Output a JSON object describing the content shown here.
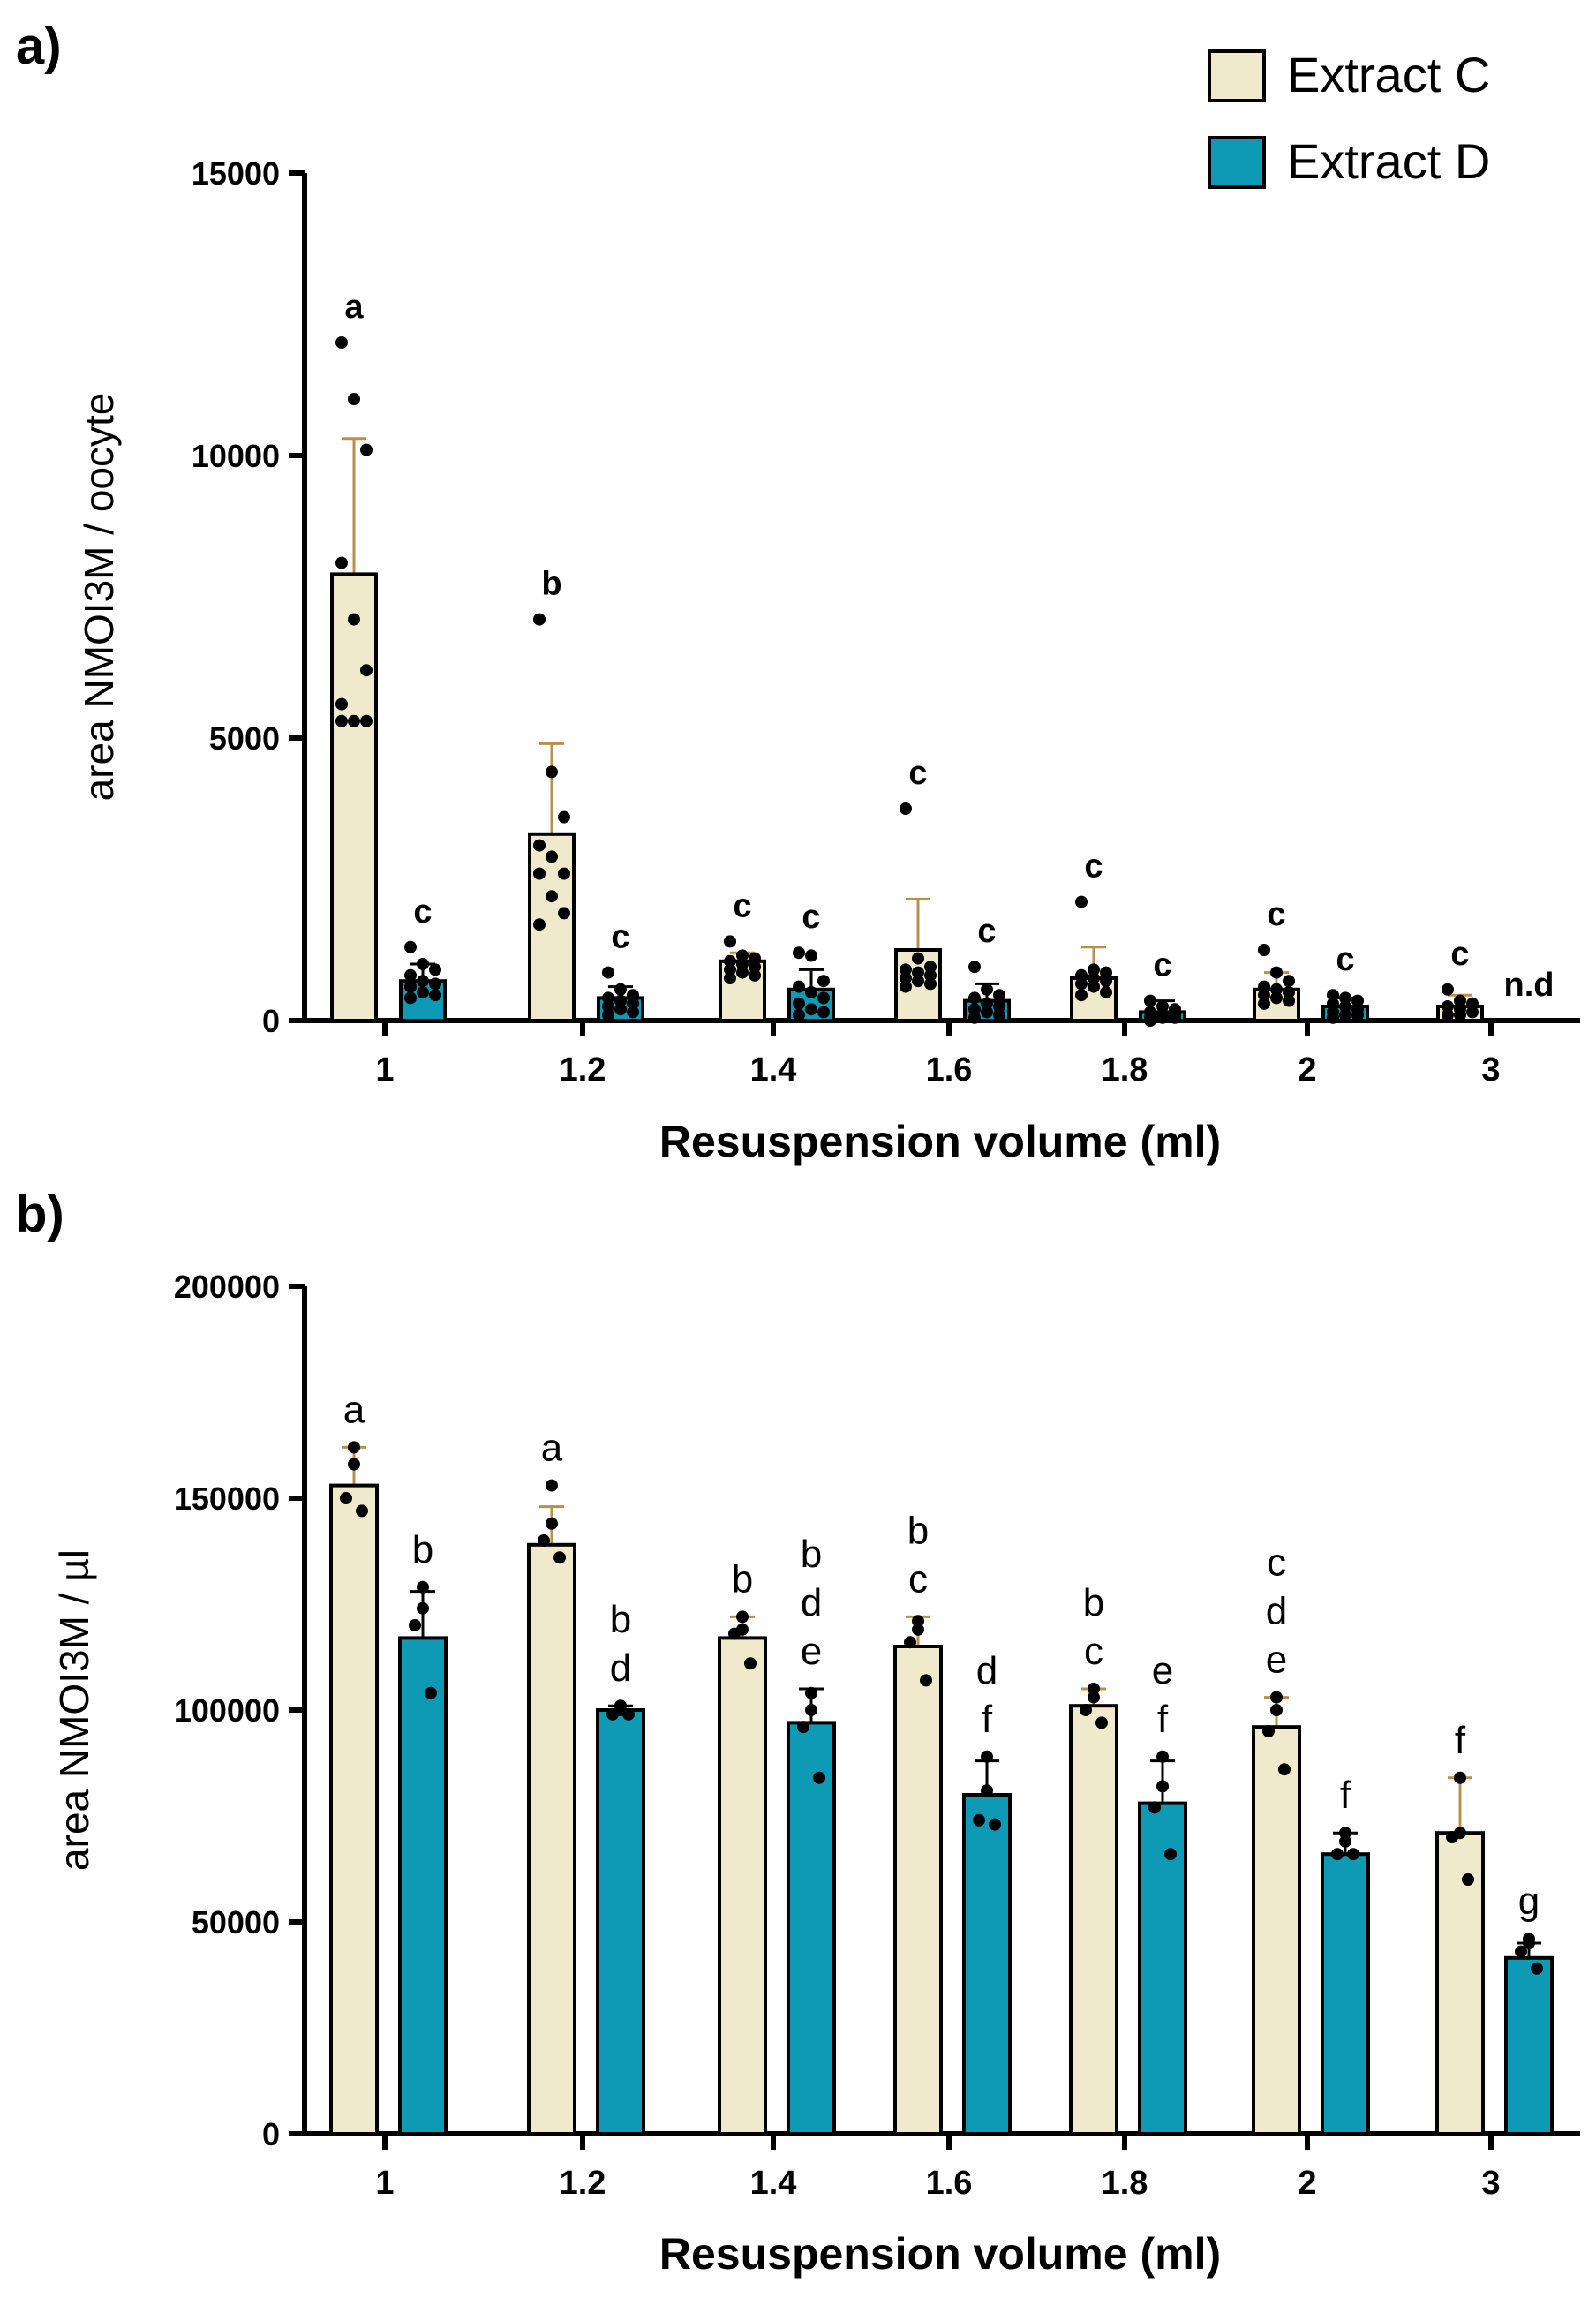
{
  "colors": {
    "extract_c": "#F0EACD",
    "extract_d": "#0E9AB5",
    "error_c": "#B8904A",
    "error_d": "#000000",
    "axis": "#000000"
  },
  "legend": {
    "placement": "top-right",
    "items": [
      "Extract C",
      "Extract D"
    ]
  },
  "chart_data": [
    {
      "type": "bar",
      "panel_label": "a)",
      "title": "",
      "xlabel": "Resuspension volume (ml)",
      "ylabel": "area NMOI3M / oocyte",
      "ylim": [
        0,
        15000
      ],
      "yticks": [
        "0",
        "5000",
        "10000",
        "15000"
      ],
      "yticks_values": [
        0,
        5000,
        10000,
        15000
      ],
      "categories": [
        "1",
        "1.2",
        "1.4",
        "1.6",
        "1.8",
        "2",
        "3"
      ],
      "series": [
        {
          "name": "Extract C",
          "values": [
            7900,
            3300,
            1050,
            1250,
            750,
            550,
            250
          ],
          "error_upper": [
            10300,
            4900,
            1200,
            2150,
            1300,
            850,
            450
          ],
          "letters": [
            "a",
            "b",
            "c",
            "c",
            "c",
            "c",
            "c"
          ],
          "points": [
            [
              12000,
              11000,
              10100,
              8100,
              7100,
              6200,
              5600,
              5300,
              5300,
              5300
            ],
            [
              7100,
              4400,
              3600,
              3100,
              2900,
              2600,
              2600,
              2200,
              1900,
              1700
            ],
            [
              1400,
              1150,
              1100,
              1050,
              1000,
              950,
              900,
              850,
              800,
              750
            ],
            [
              3750,
              1100,
              950,
              900,
              850,
              800,
              750,
              700,
              650,
              600
            ],
            [
              2100,
              900,
              850,
              800,
              750,
              700,
              650,
              600,
              500,
              450
            ],
            [
              1250,
              850,
              700,
              600,
              550,
              500,
              450,
              400,
              350,
              300
            ],
            [
              550,
              350,
              300,
              250,
              200,
              150,
              100,
              100
            ]
          ]
        },
        {
          "name": "Extract D",
          "values": [
            700,
            400,
            550,
            350,
            150,
            250,
            null
          ],
          "error_upper": [
            1000,
            600,
            900,
            650,
            350,
            400,
            null
          ],
          "letters": [
            "c",
            "c",
            "c",
            "c",
            "c",
            "c",
            "n.d"
          ],
          "points": [
            [
              1300,
              1000,
              900,
              800,
              700,
              650,
              600,
              500,
              450,
              400
            ],
            [
              850,
              550,
              450,
              400,
              350,
              300,
              250,
              200,
              150,
              100
            ],
            [
              1200,
              1150,
              700,
              600,
              500,
              400,
              300,
              200,
              150,
              100
            ],
            [
              950,
              550,
              450,
              400,
              300,
              250,
              200,
              150,
              100,
              50
            ],
            [
              350,
              250,
              200,
              150,
              100,
              100,
              50,
              50,
              50,
              0
            ],
            [
              450,
              400,
              350,
              300,
              250,
              200,
              150,
              100,
              100,
              50
            ],
            []
          ]
        }
      ]
    },
    {
      "type": "bar",
      "panel_label": "b)",
      "title": "",
      "xlabel": "Resuspension volume (ml)",
      "ylabel": "area NMOI3M / µl",
      "ylim": [
        0,
        200000
      ],
      "yticks": [
        "0",
        "50000",
        "100000",
        "150000",
        "200000"
      ],
      "yticks_values": [
        0,
        50000,
        100000,
        150000,
        200000
      ],
      "categories": [
        "1",
        "1.2",
        "1.4",
        "1.6",
        "1.8",
        "2",
        "3"
      ],
      "series": [
        {
          "name": "Extract C",
          "values": [
            153000,
            139000,
            117000,
            115000,
            101000,
            96000,
            71000
          ],
          "error_upper": [
            162000,
            148000,
            122000,
            122000,
            105000,
            103000,
            84000
          ],
          "letters": [
            [
              "a"
            ],
            [
              "a"
            ],
            [
              "b"
            ],
            [
              "b",
              "c"
            ],
            [
              "b",
              "c"
            ],
            [
              "c",
              "d",
              "e"
            ],
            [
              "f"
            ]
          ],
          "points": [
            [
              162000,
              158000,
              150000,
              147000
            ],
            [
              153000,
              144000,
              140000,
              136000
            ],
            [
              122000,
              119000,
              118000,
              111000
            ],
            [
              121000,
              119000,
              116000,
              107000
            ],
            [
              105000,
              103000,
              100000,
              97000
            ],
            [
              103000,
              100000,
              95000,
              86000
            ],
            [
              84000,
              71000,
              70000,
              60000
            ]
          ],
          "letter_suffix": []
        },
        {
          "name": "Extract D",
          "values": [
            117000,
            100000,
            97000,
            80000,
            78000,
            66000,
            41500
          ],
          "error_upper": [
            128000,
            101000,
            105000,
            88000,
            88000,
            71000,
            45000
          ],
          "letters": [
            [
              "b"
            ],
            [
              "b",
              "d"
            ],
            [
              "b",
              "d",
              "e"
            ],
            [
              "d",
              "f"
            ],
            [
              "e",
              "f"
            ],
            [
              "f"
            ],
            [
              "g"
            ]
          ],
          "points": [
            [
              129000,
              124000,
              120000,
              104000
            ],
            [
              101000,
              100000,
              99000,
              99000
            ],
            [
              104000,
              100000,
              96000,
              84000
            ],
            [
              89000,
              81000,
              74000,
              73000
            ],
            [
              89000,
              82000,
              77000,
              66000
            ],
            [
              71000,
              69000,
              66000,
              66000
            ],
            [
              46000,
              45000,
              43000,
              39000
            ]
          ]
        }
      ]
    }
  ]
}
